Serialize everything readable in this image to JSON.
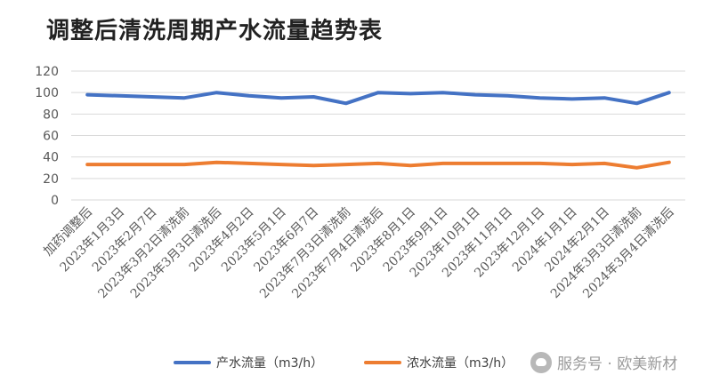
{
  "chart_data": {
    "type": "line",
    "title": "调整后清洗周期产水流量趋势表",
    "ylim": [
      0,
      120
    ],
    "yticks": [
      0,
      20,
      40,
      60,
      80,
      100,
      120
    ],
    "grid": true,
    "legend_position": "bottom",
    "categories": [
      "加药调整后",
      "2023年1月3日",
      "2023年2月7日",
      "2023年3月2日清洗前",
      "2023年3月3日清洗后",
      "2023年4月2日",
      "2023年5月1日",
      "2023年6月7日",
      "2023年7月3日清洗前",
      "2023年7月4日清洗后",
      "2023年8月1日",
      "2023年9月1日",
      "2023年10月1日",
      "2023年11月1日",
      "2023年12月1日",
      "2024年1月1日",
      "2024年2月1日",
      "2024年3月3日清洗前",
      "2024年3月4日清洗后"
    ],
    "series": [
      {
        "name": "产水流量（m3/h）",
        "color": "#4472C4",
        "values": [
          98,
          97,
          96,
          95,
          100,
          97,
          95,
          96,
          90,
          100,
          99,
          100,
          98,
          97,
          95,
          94,
          95,
          90,
          100
        ]
      },
      {
        "name": "浓水流量（m3/h）",
        "color": "#ED7D31",
        "values": [
          33,
          33,
          33,
          33,
          35,
          34,
          33,
          32,
          33,
          34,
          32,
          34,
          34,
          34,
          34,
          33,
          34,
          30,
          35
        ]
      }
    ]
  },
  "watermark": {
    "text": "服务号 · 欧美新材",
    "icon": "wechat-icon"
  }
}
